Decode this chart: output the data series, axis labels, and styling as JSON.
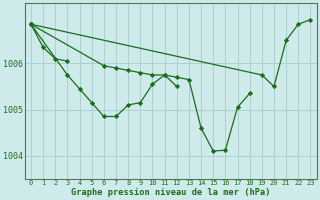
{
  "xlabel": "Graphe pression niveau de la mer (hPa)",
  "background_color": "#ceeaea",
  "plot_bg_color": "#ceeaea",
  "grid_color": "#aacccc",
  "line_color": "#1a6e1a",
  "marker_color": "#1a6e1a",
  "x_ticks": [
    0,
    1,
    2,
    3,
    4,
    5,
    6,
    7,
    8,
    9,
    10,
    11,
    12,
    13,
    14,
    15,
    16,
    17,
    18,
    19,
    20,
    21,
    22,
    23
  ],
  "ylim": [
    1003.5,
    1007.3
  ],
  "yticks": [
    1004,
    1005,
    1006
  ],
  "series": [
    [
      1006.85,
      1006.35,
      1006.1,
      1006.05
    ],
    [
      1006.85,
      null,
      null,
      1005.75,
      1005.45,
      1005.15,
      1004.85,
      1004.85,
      1005.1,
      1005.15,
      1005.55,
      1005.75,
      1005.5
    ],
    [
      1006.85,
      null,
      null,
      null,
      null,
      null,
      1005.95,
      1005.9,
      1005.85,
      1005.8,
      1005.75,
      1005.75,
      1005.7,
      1005.65,
      1004.6,
      1004.1,
      1004.12,
      1005.05,
      1005.35
    ],
    [
      1006.85,
      null,
      null,
      null,
      null,
      null,
      null,
      null,
      null,
      null,
      null,
      null,
      null,
      null,
      null,
      null,
      null,
      null,
      null,
      1005.75,
      1005.5,
      1006.5,
      1006.85,
      1006.95
    ]
  ]
}
